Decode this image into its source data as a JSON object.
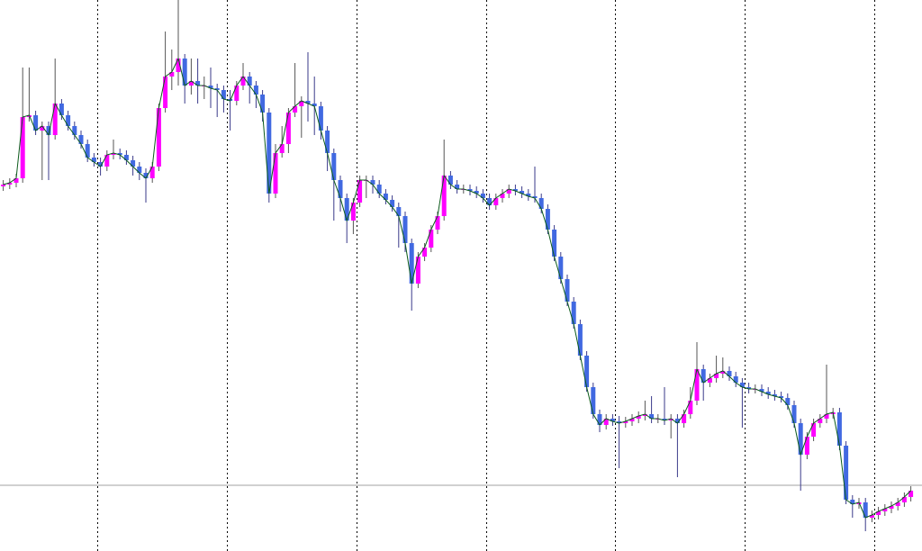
{
  "chart_data": {
    "type": "candlestick",
    "ylim": [
      0,
      612
    ],
    "bull_color": "#ff00ff",
    "bear_color": "#4169e1",
    "line_color": "#0b5a1a",
    "price_line_color": "#a0a0a0",
    "current_price_line": 73,
    "open": [
      405,
      407,
      409,
      414,
      482,
      484,
      467,
      472,
      462,
      497,
      484,
      472,
      462,
      452,
      437,
      432,
      427,
      440,
      442,
      440,
      434,
      427,
      420,
      414,
      427,
      492,
      527,
      532,
      547,
      517,
      522,
      517,
      517,
      514,
      512,
      502,
      500,
      517,
      527,
      517,
      507,
      487,
      397,
      442,
      452,
      487,
      494,
      500,
      497,
      494,
      467,
      442,
      412,
      392,
      367,
      387,
      412,
      412,
      407,
      397,
      390,
      382,
      372,
      342,
      297,
      327,
      337,
      357,
      372,
      417,
      407,
      402,
      402,
      400,
      397,
      392,
      384,
      392,
      397,
      402,
      400,
      397,
      394,
      392,
      380,
      357,
      327,
      302,
      277,
      252,
      217,
      182,
      152,
      140,
      147,
      144,
      142,
      144,
      147,
      150,
      152,
      147,
      147,
      145,
      147,
      142,
      152,
      167,
      202,
      187,
      192,
      197,
      200,
      194,
      187,
      182,
      180,
      180,
      177,
      174,
      172,
      170,
      162,
      142,
      107,
      127,
      142,
      147,
      152,
      154,
      117,
      57,
      52,
      54,
      37,
      40,
      44,
      47,
      50,
      54,
      60
    ],
    "high": [
      412,
      414,
      419,
      537,
      537,
      489,
      477,
      477,
      547,
      502,
      489,
      477,
      467,
      457,
      442,
      437,
      445,
      457,
      447,
      445,
      439,
      432,
      425,
      432,
      497,
      577,
      557,
      612,
      552,
      547,
      547,
      527,
      537,
      519,
      517,
      512,
      522,
      542,
      532,
      522,
      512,
      492,
      452,
      472,
      492,
      542,
      505,
      554,
      527,
      499,
      472,
      447,
      417,
      397,
      392,
      417,
      417,
      417,
      412,
      402,
      395,
      387,
      377,
      347,
      332,
      342,
      362,
      377,
      457,
      422,
      412,
      407,
      407,
      405,
      402,
      397,
      397,
      402,
      407,
      407,
      405,
      402,
      427,
      397,
      385,
      362,
      332,
      307,
      282,
      257,
      222,
      187,
      157,
      152,
      152,
      150,
      149,
      152,
      155,
      167,
      172,
      152,
      182,
      152,
      152,
      157,
      182,
      232,
      207,
      197,
      217,
      215,
      205,
      199,
      192,
      187,
      185,
      185,
      182,
      179,
      177,
      175,
      167,
      147,
      132,
      147,
      152,
      207,
      159,
      159,
      122,
      62,
      59,
      59,
      45,
      49,
      52,
      55,
      59,
      65,
      72
    ],
    "low": [
      400,
      402,
      404,
      409,
      477,
      462,
      412,
      412,
      457,
      479,
      467,
      457,
      447,
      432,
      427,
      417,
      422,
      435,
      435,
      429,
      417,
      412,
      387,
      409,
      422,
      487,
      512,
      517,
      497,
      507,
      497,
      502,
      492,
      482,
      487,
      467,
      495,
      512,
      497,
      492,
      477,
      387,
      392,
      437,
      442,
      482,
      459,
      477,
      462,
      457,
      422,
      367,
      377,
      342,
      352,
      382,
      392,
      397,
      392,
      385,
      377,
      337,
      332,
      267,
      292,
      322,
      332,
      352,
      367,
      402,
      397,
      397,
      395,
      392,
      387,
      379,
      379,
      387,
      392,
      395,
      392,
      389,
      387,
      375,
      352,
      322,
      297,
      272,
      247,
      212,
      177,
      147,
      132,
      135,
      139,
      92,
      137,
      139,
      142,
      145,
      142,
      142,
      140,
      125,
      82,
      137,
      147,
      162,
      167,
      182,
      187,
      192,
      189,
      182,
      137,
      175,
      175,
      172,
      169,
      167,
      165,
      157,
      137,
      67,
      102,
      122,
      137,
      142,
      147,
      112,
      52,
      37,
      47,
      22,
      32,
      35,
      39,
      42,
      45,
      49,
      55
    ],
    "close": [
      407,
      409,
      414,
      482,
      484,
      467,
      472,
      462,
      497,
      484,
      472,
      462,
      452,
      437,
      432,
      427,
      440,
      442,
      440,
      434,
      427,
      420,
      414,
      427,
      492,
      527,
      532,
      547,
      517,
      522,
      517,
      517,
      514,
      512,
      502,
      500,
      517,
      527,
      517,
      507,
      487,
      397,
      442,
      452,
      487,
      494,
      500,
      497,
      494,
      467,
      442,
      412,
      392,
      367,
      387,
      412,
      412,
      407,
      397,
      390,
      382,
      372,
      342,
      297,
      327,
      337,
      357,
      372,
      417,
      407,
      402,
      402,
      400,
      397,
      392,
      384,
      392,
      397,
      402,
      400,
      397,
      394,
      392,
      380,
      357,
      327,
      302,
      277,
      252,
      217,
      182,
      152,
      140,
      147,
      144,
      142,
      144,
      147,
      150,
      152,
      147,
      147,
      145,
      147,
      142,
      152,
      167,
      202,
      187,
      192,
      197,
      200,
      194,
      187,
      182,
      180,
      180,
      177,
      174,
      172,
      170,
      162,
      142,
      107,
      127,
      142,
      147,
      152,
      154,
      117,
      57,
      52,
      54,
      37,
      40,
      44,
      47,
      50,
      54,
      60,
      67
    ]
  }
}
